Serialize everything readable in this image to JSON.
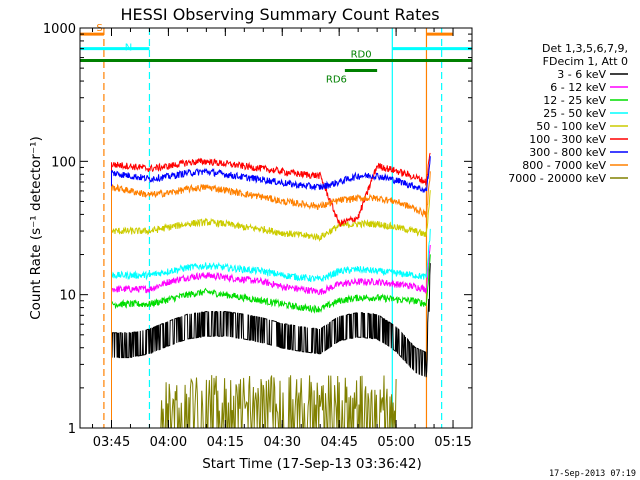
{
  "chart_data": {
    "type": "line",
    "title": "HESSI Observing Summary Count Rates",
    "ylabel": "Count Rate (s⁻¹ detector⁻¹)",
    "xlabel": "Start Time (17-Sep-13 03:36:42)",
    "yscale": "log",
    "ylim": [
      1,
      1000
    ],
    "xlim": [
      "03:36:42",
      "05:20:00"
    ],
    "x_ticks": [
      "03:45",
      "04:00",
      "04:15",
      "04:30",
      "04:45",
      "05:00",
      "05:15"
    ],
    "y_ticks": [
      "1",
      "10",
      "100",
      "1000"
    ],
    "legend_position": "right",
    "legend_header": [
      "Det 1,3,5,6,7,9,",
      "FDecim 1, Att 0"
    ],
    "footer_date": "17-Sep-2013 07:19",
    "series": [
      {
        "name": "3 - 6 keV",
        "color": "#000000",
        "x": [
          "03:45",
          "03:50",
          "03:55",
          "04:00",
          "04:05",
          "04:10",
          "04:15",
          "04:20",
          "04:25",
          "04:30",
          "04:35",
          "04:40",
          "04:45",
          "04:50",
          "04:55",
          "05:00",
          "05:05",
          "05:08",
          "05:09"
        ],
        "values": [
          4.5,
          4.5,
          4.8,
          5.5,
          6.2,
          6.5,
          6.5,
          6.2,
          5.8,
          5.3,
          5.0,
          4.8,
          6.0,
          6.4,
          6.2,
          5.0,
          3.5,
          3.2,
          15
        ]
      },
      {
        "name": "6 - 12 keV",
        "color": "#ff00ff",
        "x": [
          "03:45",
          "03:50",
          "03:55",
          "04:00",
          "04:05",
          "04:10",
          "04:15",
          "04:20",
          "04:25",
          "04:30",
          "04:35",
          "04:40",
          "04:45",
          "04:50",
          "04:55",
          "05:00",
          "05:05",
          "05:08",
          "05:09"
        ],
        "values": [
          11,
          11,
          11,
          12.5,
          13.5,
          14,
          13.5,
          13,
          12.5,
          11.5,
          11,
          10.5,
          12,
          12.5,
          12.5,
          12,
          11.5,
          11,
          25
        ]
      },
      {
        "name": "12 - 25 keV",
        "color": "#00dd00",
        "x": [
          "03:45",
          "03:50",
          "03:55",
          "04:00",
          "04:05",
          "04:10",
          "04:15",
          "04:20",
          "04:25",
          "04:30",
          "04:35",
          "04:40",
          "04:45",
          "04:50",
          "04:55",
          "05:00",
          "05:05",
          "05:08",
          "05:09"
        ],
        "values": [
          8.5,
          8.5,
          8.5,
          9.2,
          10,
          10.5,
          10,
          9.5,
          9,
          8.5,
          8,
          7.8,
          9,
          9.5,
          9.5,
          9.2,
          9,
          8.5,
          20
        ]
      },
      {
        "name": "25 - 50 keV",
        "color": "#00ffff",
        "x": [
          "03:45",
          "03:50",
          "03:55",
          "04:00",
          "04:05",
          "04:10",
          "04:15",
          "04:20",
          "04:25",
          "04:30",
          "04:35",
          "04:40",
          "04:45",
          "04:50",
          "04:55",
          "05:00",
          "05:05",
          "05:08",
          "05:09"
        ],
        "values": [
          14,
          14,
          14,
          15,
          16,
          16.5,
          16,
          15.5,
          15,
          14,
          13.5,
          13,
          15,
          15.5,
          15,
          14.5,
          14,
          13.5,
          30
        ]
      },
      {
        "name": "50 - 100 keV",
        "color": "#cccc00",
        "x": [
          "03:45",
          "03:50",
          "03:55",
          "04:00",
          "04:05",
          "04:10",
          "04:15",
          "04:20",
          "04:25",
          "04:30",
          "04:35",
          "04:40",
          "04:45",
          "04:50",
          "04:55",
          "05:00",
          "05:05",
          "05:08",
          "05:09"
        ],
        "values": [
          30,
          30,
          30,
          32,
          34,
          35,
          34,
          32,
          31,
          29,
          28,
          27,
          33,
          34,
          34,
          32,
          30,
          28,
          60
        ]
      },
      {
        "name": "100 - 300 keV",
        "color": "#ff0000",
        "x": [
          "03:45",
          "03:50",
          "03:55",
          "04:00",
          "04:05",
          "04:10",
          "04:15",
          "04:20",
          "04:25",
          "04:30",
          "04:35",
          "04:40",
          "04:45",
          "04:50",
          "04:55",
          "05:00",
          "05:05",
          "05:08",
          "05:09"
        ],
        "values": [
          95,
          92,
          88,
          92,
          98,
          100,
          96,
          92,
          88,
          84,
          80,
          78,
          34,
          38,
          93,
          85,
          76,
          70,
          120
        ]
      },
      {
        "name": "300 - 800 keV",
        "color": "#0000ff",
        "x": [
          "03:45",
          "03:50",
          "03:55",
          "04:00",
          "04:05",
          "04:10",
          "04:15",
          "04:20",
          "04:25",
          "04:30",
          "04:35",
          "04:40",
          "04:45",
          "04:50",
          "04:55",
          "05:00",
          "05:05",
          "05:08",
          "05:09"
        ],
        "values": [
          82,
          78,
          74,
          77,
          82,
          84,
          80,
          76,
          73,
          69,
          66,
          64,
          70,
          78,
          78,
          72,
          65,
          60,
          105
        ]
      },
      {
        "name": "800 - 7000 keV",
        "color": "#ff8000",
        "x": [
          "03:45",
          "03:50",
          "03:55",
          "04:00",
          "04:05",
          "04:10",
          "04:15",
          "04:20",
          "04:25",
          "04:30",
          "04:35",
          "04:40",
          "04:45",
          "04:50",
          "04:55",
          "05:00",
          "05:05",
          "05:08",
          "05:09"
        ],
        "values": [
          64,
          60,
          56,
          58,
          62,
          64,
          61,
          57,
          54,
          50,
          48,
          46,
          51,
          53,
          53,
          50,
          44,
          40,
          80
        ]
      },
      {
        "name": "7000 - 20000 keV",
        "color": "#808000",
        "x": [
          "03:58",
          "04:01",
          "04:04",
          "04:07",
          "04:10",
          "04:42",
          "04:45",
          "04:48",
          "04:51",
          "04:54",
          "04:57",
          "05:00"
        ],
        "values": [
          2,
          1.5,
          2,
          1.3,
          2,
          2,
          1.5,
          2.2,
          1.5,
          2.5,
          2,
          1.4
        ]
      }
    ],
    "annotations": [
      {
        "label": "S",
        "color": "#ff8000",
        "x_start": "03:36:42",
        "x_end": "03:43:00",
        "level": 900
      },
      {
        "label": "N",
        "color": "#00ffff",
        "x_start": "03:36:42",
        "x_end": "03:55:00",
        "level": 700
      },
      {
        "label": "",
        "color": "#00ffff",
        "x_start": "04:59:00",
        "x_end": "05:20:00",
        "level": 700
      },
      {
        "label": "",
        "color": "#ff8000",
        "x_start": "05:08:00",
        "x_end": "05:15:00",
        "level": 900
      },
      {
        "label": "RD0",
        "color": "#008000",
        "x_start": "03:36:42",
        "x_end": "05:20:00",
        "level": 570
      },
      {
        "label": "RD6",
        "color": "#008000",
        "x_start": "04:46:30",
        "x_end": "04:55:00",
        "level": 480
      }
    ],
    "vlines": [
      {
        "color": "#ff8000",
        "time": "03:43:00",
        "dashed": true
      },
      {
        "color": "#00ffff",
        "time": "03:55:00",
        "dashed": true
      },
      {
        "color": "#00ffff",
        "time": "04:59:00",
        "dashed": false
      },
      {
        "color": "#ff8000",
        "time": "05:08:00",
        "dashed": false
      },
      {
        "color": "#00ffff",
        "time": "05:12:00",
        "dashed": true
      }
    ]
  }
}
